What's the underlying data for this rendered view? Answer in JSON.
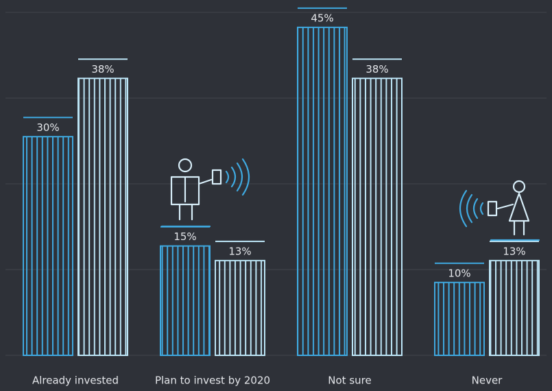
{
  "chart_data": {
    "type": "bar",
    "categories": [
      "Already invested",
      "Plan to invest by 2020",
      "Not sure",
      "Never"
    ],
    "series": [
      {
        "color": "#3fa9e0",
        "values": [
          30,
          15,
          45,
          10
        ],
        "value_labels": [
          "30%",
          "15%",
          "45%",
          "10%"
        ]
      },
      {
        "color": "#bde6f7",
        "values": [
          38,
          13,
          38,
          13
        ],
        "value_labels": [
          "38%",
          "13%",
          "38%",
          "13%"
        ]
      }
    ],
    "ylim": [
      0,
      48
    ]
  }
}
